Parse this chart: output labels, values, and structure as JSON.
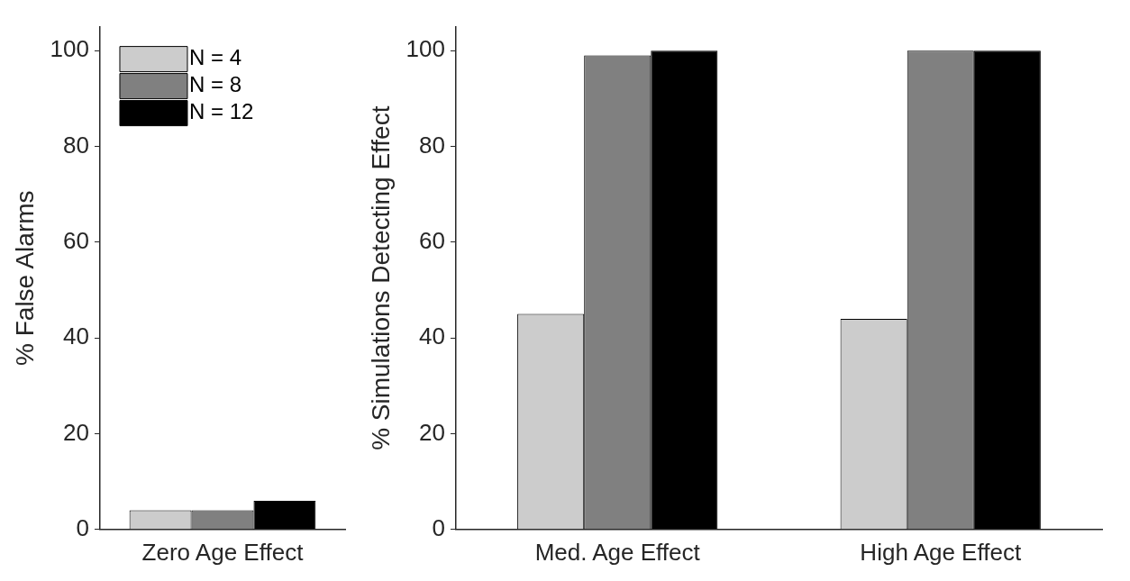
{
  "chart_data": [
    {
      "type": "bar",
      "ylabel": "% False Alarms",
      "categories": [
        "Zero Age Effect"
      ],
      "ylim": [
        0,
        105
      ],
      "yticks": [
        0,
        20,
        40,
        60,
        80,
        100
      ],
      "grid": false,
      "legend": "top left",
      "series": [
        {
          "name": "N = 4",
          "color": "#cccccc",
          "values": [
            4
          ]
        },
        {
          "name": "N = 8",
          "color": "#808080",
          "values": [
            4
          ]
        },
        {
          "name": "N = 12",
          "color": "#000000",
          "values": [
            6
          ]
        }
      ]
    },
    {
      "type": "bar",
      "ylabel": "% Simulations Detecting Effect",
      "categories": [
        "Med. Age Effect",
        "High Age Effect"
      ],
      "ylim": [
        0,
        105
      ],
      "yticks": [
        0,
        20,
        40,
        60,
        80,
        100
      ],
      "grid": false,
      "legend": false,
      "series": [
        {
          "color": "#cccccc",
          "values": [
            45,
            44
          ]
        },
        {
          "color": "#808080",
          "values": [
            99,
            100
          ]
        },
        {
          "color": "#000000",
          "values": [
            100,
            100
          ]
        }
      ]
    }
  ]
}
